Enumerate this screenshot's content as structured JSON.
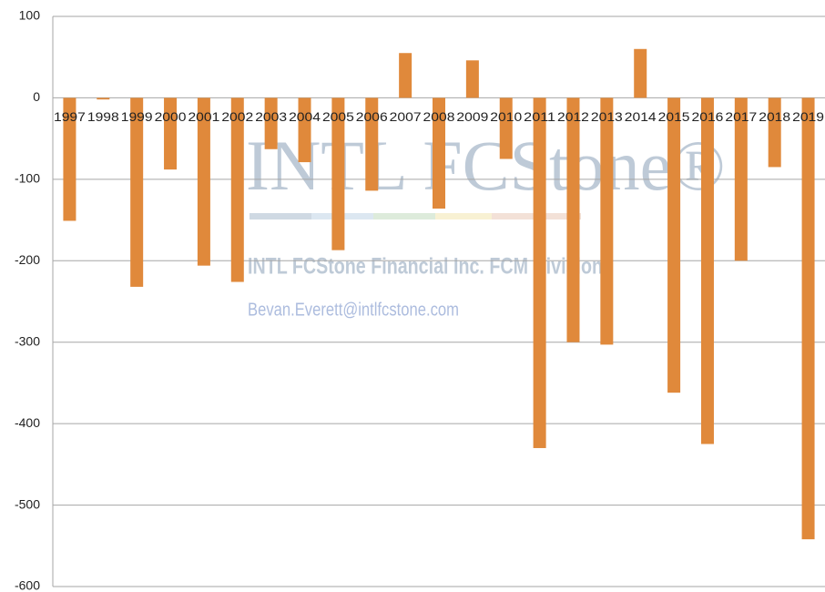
{
  "chart_data": {
    "type": "bar",
    "categories": [
      "1997",
      "1998",
      "1999",
      "2000",
      "2001",
      "2002",
      "2003",
      "2004",
      "2005",
      "2006",
      "2007",
      "2008",
      "2009",
      "2010",
      "2011",
      "2012",
      "2013",
      "2014",
      "2015",
      "2016",
      "2017",
      "2018",
      "2019"
    ],
    "values": [
      -151,
      -2,
      -232,
      -88,
      -206,
      -226,
      -63,
      -79,
      -187,
      -114,
      55,
      -136,
      46,
      -75,
      -430,
      -300,
      -303,
      60,
      -362,
      -425,
      -200,
      -85,
      -542
    ],
    "color": "#e0893b",
    "ylim": [
      -600,
      100
    ],
    "yticks": [
      -600,
      -500,
      -400,
      -300,
      -200,
      -100,
      0,
      100
    ],
    "grid": true,
    "watermark": {
      "logo": "INTL FCStone®",
      "company": "INTL FCStone Financial Inc. FCM Division",
      "email": "Bevan.Everett@intlfcstone.com"
    }
  }
}
